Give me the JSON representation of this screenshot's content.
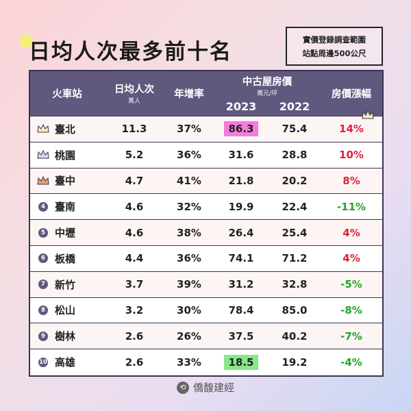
{
  "title": "日均人次最多前十名",
  "note": {
    "line1": "實價登錄調查範圍",
    "line2": "站點周邊500公尺"
  },
  "headers": {
    "station": "火車站",
    "ridership": "日均人次",
    "ridership_unit": "萬人",
    "growth": "年增率",
    "price": "中古屋房價",
    "price_unit": "萬元/坪",
    "y2023": "2023",
    "y2022": "2022",
    "change": "房價漲幅"
  },
  "colors": {
    "header_bg": "#61587e",
    "positive": "#e0203a",
    "negative": "#20a62a",
    "highlight_high": "#f57cdc",
    "highlight_low": "#86e887"
  },
  "rows": [
    {
      "rank": "1",
      "icon": "crown-gold-icon",
      "station": "臺北",
      "ridership": "11.3",
      "growth": "37%",
      "p2023": "86.3",
      "p2022": "75.4",
      "change": "14%"
    },
    {
      "rank": "2",
      "icon": "crown-silver-icon",
      "station": "桃園",
      "ridership": "5.2",
      "growth": "36%",
      "p2023": "31.6",
      "p2022": "28.8",
      "change": "10%"
    },
    {
      "rank": "3",
      "icon": "crown-bronze-icon",
      "station": "臺中",
      "ridership": "4.7",
      "growth": "41%",
      "p2023": "21.8",
      "p2022": "20.2",
      "change": "8%"
    },
    {
      "rank": "4",
      "icon": "rank-4-icon",
      "station": "臺南",
      "ridership": "4.6",
      "growth": "32%",
      "p2023": "19.9",
      "p2022": "22.4",
      "change": "-11%"
    },
    {
      "rank": "5",
      "icon": "rank-5-icon",
      "station": "中壢",
      "ridership": "4.6",
      "growth": "38%",
      "p2023": "26.4",
      "p2022": "25.4",
      "change": "4%"
    },
    {
      "rank": "6",
      "icon": "rank-6-icon",
      "station": "板橋",
      "ridership": "4.4",
      "growth": "36%",
      "p2023": "74.1",
      "p2022": "71.2",
      "change": "4%"
    },
    {
      "rank": "7",
      "icon": "rank-7-icon",
      "station": "新竹",
      "ridership": "3.7",
      "growth": "39%",
      "p2023": "31.2",
      "p2022": "32.8",
      "change": "-5%"
    },
    {
      "rank": "8",
      "icon": "rank-8-icon",
      "station": "松山",
      "ridership": "3.2",
      "growth": "30%",
      "p2023": "78.4",
      "p2022": "85.0",
      "change": "-8%"
    },
    {
      "rank": "9",
      "icon": "rank-9-icon",
      "station": "樹林",
      "ridership": "2.6",
      "growth": "26%",
      "p2023": "37.5",
      "p2022": "40.2",
      "change": "-7%"
    },
    {
      "rank": "10",
      "icon": "rank-10-icon",
      "station": "高雄",
      "ridership": "2.6",
      "growth": "33%",
      "p2023": "18.5",
      "p2022": "19.2",
      "change": "-4%"
    }
  ],
  "footer": {
    "brand": "僑馥建經"
  }
}
